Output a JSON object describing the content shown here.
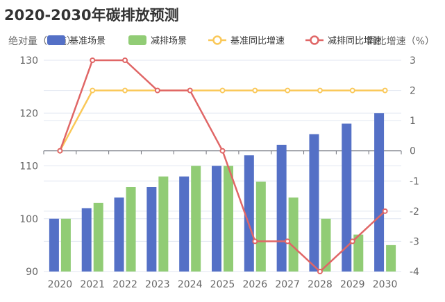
{
  "chart_data": {
    "type": "bar",
    "title": "2020-2030年碳排放预测",
    "categories": [
      "2020",
      "2021",
      "2022",
      "2023",
      "2024",
      "2025",
      "2026",
      "2027",
      "2028",
      "2029",
      "2030"
    ],
    "y_left": {
      "label": "绝对量（亿吨）",
      "min": 90,
      "max": 130,
      "ticks": [
        90,
        100,
        110,
        120,
        130
      ]
    },
    "y_right": {
      "label": "同比增速（%）",
      "min": -4,
      "max": 3,
      "ticks": [
        -4,
        -3,
        -2,
        -1,
        0,
        1,
        2,
        3
      ]
    },
    "series": [
      {
        "name": "基准场景",
        "type": "bar",
        "axis": "left",
        "color": "#5470c6",
        "values": [
          100,
          102,
          104,
          106,
          108,
          110,
          112,
          114,
          116,
          118,
          120
        ]
      },
      {
        "name": "减排场景",
        "type": "bar",
        "axis": "left",
        "color": "#91cc75",
        "values": [
          100,
          103,
          106,
          108,
          110,
          110,
          107,
          104,
          100,
          97,
          95
        ]
      },
      {
        "name": "基准同比增速",
        "type": "line",
        "axis": "right",
        "color": "#fac858",
        "values": [
          0,
          2,
          2,
          2,
          2,
          2,
          2,
          2,
          2,
          2,
          2
        ]
      },
      {
        "name": "减排同比增速",
        "type": "line",
        "axis": "right",
        "color": "#e06666",
        "values": [
          0,
          3,
          3,
          2,
          2,
          0,
          -3,
          -3,
          -4,
          -3,
          -2
        ]
      }
    ],
    "legend_position": "top"
  }
}
